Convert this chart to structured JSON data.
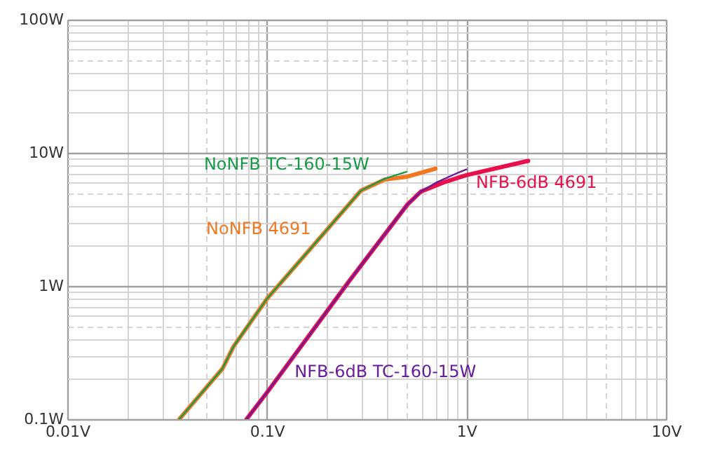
{
  "chart_data": {
    "type": "line",
    "log": "xy",
    "grid": true,
    "marker": "none",
    "line_style": "solid",
    "xlim": [
      0.01,
      10
    ],
    "ylim": [
      0.1,
      100
    ],
    "xticks": [
      {
        "value": 0.01,
        "label": "0.01V"
      },
      {
        "value": 0.02,
        "label": null
      },
      {
        "value": 0.03,
        "label": null
      },
      {
        "value": 0.04,
        "label": null
      },
      {
        "value": 0.05,
        "label": null
      },
      {
        "value": 0.06,
        "label": null
      },
      {
        "value": 0.07,
        "label": null
      },
      {
        "value": 0.08,
        "label": null
      },
      {
        "value": 0.09,
        "label": null
      },
      {
        "value": 0.1,
        "label": "0.1V"
      },
      {
        "value": 0.2,
        "label": null
      },
      {
        "value": 0.3,
        "label": null
      },
      {
        "value": 0.4,
        "label": null
      },
      {
        "value": 0.5,
        "label": null
      },
      {
        "value": 0.6,
        "label": null
      },
      {
        "value": 0.7,
        "label": null
      },
      {
        "value": 0.8,
        "label": null
      },
      {
        "value": 0.9,
        "label": null
      },
      {
        "value": 1,
        "label": "1V"
      },
      {
        "value": 2,
        "label": null
      },
      {
        "value": 3,
        "label": null
      },
      {
        "value": 4,
        "label": null
      },
      {
        "value": 5,
        "label": null
      },
      {
        "value": 6,
        "label": null
      },
      {
        "value": 7,
        "label": null
      },
      {
        "value": 8,
        "label": null
      },
      {
        "value": 9,
        "label": null
      },
      {
        "value": 10,
        "label": "10V"
      }
    ],
    "yticks": [
      {
        "value": 0.1,
        "label": "0.1W"
      },
      {
        "value": 0.2,
        "label": null
      },
      {
        "value": 0.3,
        "label": null
      },
      {
        "value": 0.4,
        "label": null
      },
      {
        "value": 0.5,
        "label": null
      },
      {
        "value": 0.6,
        "label": null
      },
      {
        "value": 0.7,
        "label": null
      },
      {
        "value": 0.8,
        "label": null
      },
      {
        "value": 0.9,
        "label": null
      },
      {
        "value": 1,
        "label": "1W"
      },
      {
        "value": 2,
        "label": null
      },
      {
        "value": 3,
        "label": null
      },
      {
        "value": 4,
        "label": null
      },
      {
        "value": 5,
        "label": null
      },
      {
        "value": 6,
        "label": null
      },
      {
        "value": 7,
        "label": null
      },
      {
        "value": 8,
        "label": null
      },
      {
        "value": 9,
        "label": null
      },
      {
        "value": 10,
        "label": "10W"
      },
      {
        "value": 20,
        "label": null
      },
      {
        "value": 30,
        "label": null
      },
      {
        "value": 40,
        "label": null
      },
      {
        "value": 50,
        "label": null
      },
      {
        "value": 60,
        "label": null
      },
      {
        "value": 70,
        "label": null
      },
      {
        "value": 80,
        "label": null
      },
      {
        "value": 90,
        "label": null
      },
      {
        "value": 100,
        "label": "100W"
      }
    ],
    "series": [
      {
        "name": "NoNFB 4691",
        "color": "#f07820",
        "x": [
          0.0364,
          0.06,
          0.068,
          0.1,
          0.296,
          0.39,
          0.5,
          0.7
        ],
        "values": [
          0.1,
          0.24,
          0.35,
          0.8,
          5.2,
          6.3,
          6.6,
          7.6
        ]
      },
      {
        "name": "NoNFB TC-160-15W",
        "color": "#1a9a48",
        "x": [
          0.0364,
          0.0597,
          0.0684,
          0.1,
          0.296,
          0.39,
          0.5
        ],
        "values": [
          0.1,
          0.238,
          0.355,
          0.8,
          5.2,
          6.4,
          7.2
        ]
      },
      {
        "name": "NFB-6dB 4691",
        "color": "#e8104a",
        "x": [
          0.0791,
          0.1,
          0.26,
          0.507,
          0.59,
          0.77,
          1.0,
          2.04
        ],
        "values": [
          0.1,
          0.158,
          1.1,
          4.1,
          5.1,
          6.0,
          6.8,
          8.7
        ]
      },
      {
        "name": "NFB-6dB TC-160-15W",
        "color": "#6a1b9a",
        "x": [
          0.0791,
          0.1,
          0.26,
          0.507,
          0.59,
          0.71,
          0.91,
          1.0
        ],
        "values": [
          0.1,
          0.158,
          1.1,
          4.1,
          5.1,
          6.0,
          7.1,
          7.5
        ]
      }
    ]
  }
}
